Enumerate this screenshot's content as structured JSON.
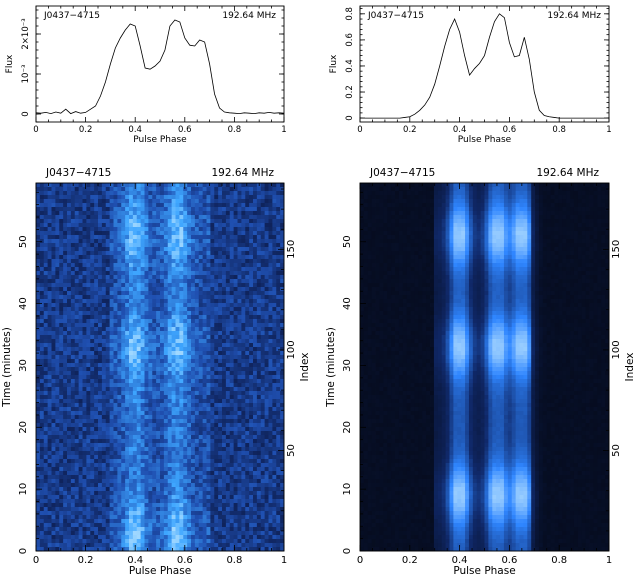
{
  "figure": {
    "source_label": "J0437−4715",
    "frequency_label": "192.64 MHz"
  },
  "chart_data": [
    {
      "type": "line",
      "title": "J0437−4715",
      "subtitle": "192.64 MHz",
      "xlabel": "Pulse Phase",
      "ylabel": "Flux",
      "xlim": [
        0,
        1
      ],
      "ylim": [
        -0.0002,
        0.0027
      ],
      "xticks": [
        "0",
        "0.2",
        "0.4",
        "0.6",
        "0.8",
        "1"
      ],
      "yticks": [
        "0",
        "10⁻³",
        "2×10⁻³"
      ],
      "y_tick_values": [
        0,
        0.001,
        0.002
      ],
      "x": [
        0.0,
        0.02,
        0.04,
        0.06,
        0.08,
        0.1,
        0.12,
        0.14,
        0.16,
        0.18,
        0.2,
        0.22,
        0.24,
        0.26,
        0.28,
        0.3,
        0.32,
        0.34,
        0.36,
        0.38,
        0.4,
        0.42,
        0.44,
        0.46,
        0.48,
        0.5,
        0.52,
        0.54,
        0.56,
        0.58,
        0.6,
        0.62,
        0.64,
        0.66,
        0.68,
        0.7,
        0.72,
        0.74,
        0.76,
        0.78,
        0.8,
        0.82,
        0.84,
        0.86,
        0.88,
        0.9,
        0.92,
        0.94,
        0.96,
        0.98,
        1.0
      ],
      "y": [
        3e-05,
        2e-05,
        4e-05,
        1e-05,
        5e-05,
        2e-05,
        0.00012,
        1e-05,
        6e-05,
        2e-05,
        4e-05,
        0.00012,
        0.0002,
        0.00045,
        0.0008,
        0.00125,
        0.00165,
        0.0019,
        0.0021,
        0.00225,
        0.0022,
        0.0017,
        0.00115,
        0.00112,
        0.0012,
        0.00132,
        0.0016,
        0.0022,
        0.00235,
        0.0023,
        0.0019,
        0.00172,
        0.0017,
        0.00185,
        0.0018,
        0.00125,
        0.0005,
        0.00015,
        5e-05,
        3e-05,
        2e-05,
        1e-05,
        3e-05,
        2e-05,
        1e-05,
        3e-05,
        2e-05,
        4e-05,
        2e-05,
        3e-05,
        2e-05
      ],
      "grid": false
    },
    {
      "type": "line",
      "title": "J0437−4715",
      "subtitle": "192.64 MHz",
      "xlabel": "Pulse Phase",
      "ylabel": "Flux",
      "xlim": [
        0,
        1
      ],
      "ylim": [
        -0.03,
        0.86
      ],
      "xticks": [
        "0",
        "0.2",
        "0.4",
        "0.6",
        "0.8",
        "1"
      ],
      "yticks": [
        "0",
        "0.2",
        "0.4",
        "0.6",
        "0.8"
      ],
      "y_tick_values": [
        0,
        0.2,
        0.4,
        0.6,
        0.8
      ],
      "x": [
        0.0,
        0.02,
        0.04,
        0.06,
        0.08,
        0.1,
        0.12,
        0.14,
        0.16,
        0.18,
        0.2,
        0.22,
        0.24,
        0.26,
        0.28,
        0.3,
        0.32,
        0.34,
        0.36,
        0.38,
        0.4,
        0.42,
        0.44,
        0.46,
        0.48,
        0.5,
        0.52,
        0.54,
        0.56,
        0.58,
        0.6,
        0.62,
        0.64,
        0.66,
        0.68,
        0.7,
        0.72,
        0.74,
        0.76,
        0.78,
        0.8,
        0.82,
        0.84,
        0.86,
        0.88,
        0.9,
        0.92,
        0.94,
        0.96,
        0.98,
        1.0
      ],
      "y": [
        0.0,
        0.0,
        0.0,
        0.0,
        0.0,
        0.0,
        0.0,
        0.0,
        0.0,
        0.005,
        0.01,
        0.03,
        0.06,
        0.1,
        0.16,
        0.26,
        0.4,
        0.55,
        0.68,
        0.76,
        0.66,
        0.48,
        0.33,
        0.38,
        0.42,
        0.48,
        0.62,
        0.74,
        0.8,
        0.77,
        0.58,
        0.47,
        0.48,
        0.62,
        0.45,
        0.2,
        0.06,
        0.02,
        0.01,
        0.005,
        0.0,
        0.0,
        0.0,
        0.0,
        0.0,
        0.0,
        0.0,
        0.0,
        0.0,
        0.0,
        0.0
      ],
      "grid": false
    },
    {
      "type": "heatmap",
      "title": "J0437−4715",
      "subtitle": "192.64 MHz",
      "xlabel": "Pulse Phase",
      "ylabel": "Time (minutes)",
      "y2label": "Index",
      "xlim": [
        0,
        1
      ],
      "ylim": [
        0,
        59.5
      ],
      "y2lim": [
        0,
        183
      ],
      "xticks": [
        "0",
        "0.2",
        "0.4",
        "0.6",
        "0.8",
        "1"
      ],
      "yticks": [
        "0",
        "10",
        "20",
        "30",
        "40",
        "50"
      ],
      "y2ticks": [
        "50",
        "100",
        "150"
      ],
      "peak_phases": [
        0.4,
        0.57
      ],
      "on_pulse_range": [
        0.3,
        0.7
      ],
      "bright_times_minutes": [
        3,
        33,
        51
      ],
      "colormap": [
        "#0a1540",
        "#1f4fb0",
        "#3ea6ff",
        "#d8f4ff"
      ],
      "noisy": true
    },
    {
      "type": "heatmap",
      "title": "J0437−4715",
      "subtitle": "192.64 MHz",
      "xlabel": "Pulse Phase",
      "ylabel": "Time (minutes)",
      "y2label": "Index",
      "xlim": [
        0,
        1
      ],
      "ylim": [
        0,
        59.5
      ],
      "y2lim": [
        0,
        183
      ],
      "xticks": [
        "0",
        "0.2",
        "0.4",
        "0.6",
        "0.8",
        "1"
      ],
      "yticks": [
        "0",
        "10",
        "20",
        "30",
        "40",
        "50"
      ],
      "y2ticks": [
        "50",
        "100",
        "150"
      ],
      "peak_phases": [
        0.4,
        0.55,
        0.65
      ],
      "on_pulse_range": [
        0.3,
        0.68
      ],
      "bright_times_minutes": [
        9,
        33,
        51
      ],
      "colormap": [
        "#050a1a",
        "#10296a",
        "#2f86ff",
        "#cbefff"
      ],
      "noisy": false
    }
  ]
}
